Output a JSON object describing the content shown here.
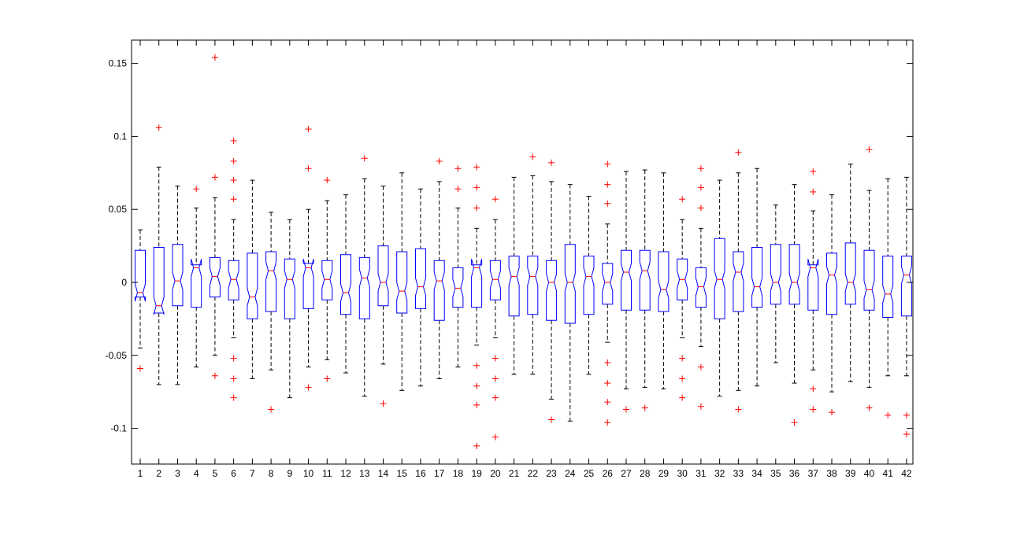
{
  "chart_data": {
    "type": "boxplot",
    "notched": true,
    "ylim": [
      -0.125,
      0.165
    ],
    "yticks": [
      "-0.1",
      "-0.05",
      "0",
      "0.05",
      "0.1",
      "0.15"
    ],
    "ytick_values": [
      -0.1,
      -0.05,
      0,
      0.05,
      0.1,
      0.15
    ],
    "categories": [
      "1",
      "2",
      "3",
      "4",
      "5",
      "6",
      "7",
      "8",
      "9",
      "10",
      "11",
      "12",
      "13",
      "14",
      "15",
      "16",
      "17",
      "18",
      "19",
      "20",
      "21",
      "22",
      "23",
      "24",
      "25",
      "26",
      "27",
      "28",
      "29",
      "30",
      "31",
      "32",
      "33",
      "34",
      "35",
      "36",
      "37",
      "38",
      "39",
      "40",
      "41",
      "42"
    ],
    "colors": {
      "box": "#0000ff",
      "median": "#ff0000",
      "whisker": "#000000",
      "outlier": "#ff0000",
      "axes": "#000000",
      "background": "#ffffff"
    },
    "boxes": [
      {
        "wlo": -0.045,
        "q1": -0.01,
        "med": -0.007,
        "q3": 0.022,
        "whi": 0.036,
        "out": [
          -0.059
        ]
      },
      {
        "wlo": -0.07,
        "q1": -0.021,
        "med": -0.016,
        "q3": 0.024,
        "whi": 0.079,
        "out": [
          0.106
        ]
      },
      {
        "wlo": -0.07,
        "q1": -0.016,
        "med": 0.001,
        "q3": 0.026,
        "whi": 0.066,
        "out": []
      },
      {
        "wlo": -0.058,
        "q1": -0.017,
        "med": 0.01,
        "q3": 0.012,
        "whi": 0.051,
        "out": [
          0.064
        ]
      },
      {
        "wlo": -0.05,
        "q1": -0.01,
        "med": 0.004,
        "q3": 0.017,
        "whi": 0.058,
        "out": [
          0.154,
          0.072,
          -0.064
        ]
      },
      {
        "wlo": -0.038,
        "q1": -0.012,
        "med": 0.002,
        "q3": 0.015,
        "whi": 0.043,
        "out": [
          0.097,
          0.083,
          0.07,
          0.057,
          -0.052,
          -0.066,
          -0.079
        ]
      },
      {
        "wlo": -0.066,
        "q1": -0.025,
        "med": -0.01,
        "q3": 0.02,
        "whi": 0.07,
        "out": []
      },
      {
        "wlo": -0.06,
        "q1": -0.02,
        "med": 0.008,
        "q3": 0.021,
        "whi": 0.048,
        "out": [
          -0.087
        ]
      },
      {
        "wlo": -0.079,
        "q1": -0.025,
        "med": 0.002,
        "q3": 0.016,
        "whi": 0.043,
        "out": []
      },
      {
        "wlo": -0.058,
        "q1": -0.018,
        "med": 0.01,
        "q3": 0.013,
        "whi": 0.05,
        "out": [
          0.105,
          0.078,
          -0.072
        ]
      },
      {
        "wlo": -0.053,
        "q1": -0.012,
        "med": 0.002,
        "q3": 0.015,
        "whi": 0.056,
        "out": [
          0.07,
          -0.066
        ]
      },
      {
        "wlo": -0.062,
        "q1": -0.022,
        "med": -0.007,
        "q3": 0.019,
        "whi": 0.06,
        "out": []
      },
      {
        "wlo": -0.078,
        "q1": -0.025,
        "med": 0.003,
        "q3": 0.017,
        "whi": 0.071,
        "out": [
          0.085
        ]
      },
      {
        "wlo": -0.056,
        "q1": -0.016,
        "med": 0.0,
        "q3": 0.025,
        "whi": 0.066,
        "out": [
          -0.083
        ]
      },
      {
        "wlo": -0.074,
        "q1": -0.021,
        "med": -0.006,
        "q3": 0.021,
        "whi": 0.075,
        "out": []
      },
      {
        "wlo": -0.071,
        "q1": -0.018,
        "med": -0.003,
        "q3": 0.023,
        "whi": 0.064,
        "out": []
      },
      {
        "wlo": -0.066,
        "q1": -0.026,
        "med": 0.001,
        "q3": 0.015,
        "whi": 0.069,
        "out": [
          0.083
        ]
      },
      {
        "wlo": -0.058,
        "q1": -0.017,
        "med": -0.004,
        "q3": 0.01,
        "whi": 0.051,
        "out": [
          0.078,
          0.064
        ]
      },
      {
        "wlo": -0.043,
        "q1": -0.017,
        "med": 0.01,
        "q3": 0.012,
        "whi": 0.037,
        "out": [
          0.079,
          0.065,
          0.051,
          -0.057,
          -0.071,
          -0.084,
          -0.112
        ]
      },
      {
        "wlo": -0.038,
        "q1": -0.012,
        "med": 0.002,
        "q3": 0.015,
        "whi": 0.043,
        "out": [
          0.057,
          -0.052,
          -0.066,
          -0.079,
          -0.106
        ]
      },
      {
        "wlo": -0.063,
        "q1": -0.023,
        "med": 0.004,
        "q3": 0.018,
        "whi": 0.072,
        "out": []
      },
      {
        "wlo": -0.063,
        "q1": -0.022,
        "med": 0.004,
        "q3": 0.018,
        "whi": 0.073,
        "out": [
          0.086
        ]
      },
      {
        "wlo": -0.08,
        "q1": -0.026,
        "med": 0.0,
        "q3": 0.015,
        "whi": 0.069,
        "out": [
          0.082,
          -0.094
        ]
      },
      {
        "wlo": -0.095,
        "q1": -0.028,
        "med": 0.0,
        "q3": 0.026,
        "whi": 0.067,
        "out": []
      },
      {
        "wlo": -0.063,
        "q1": -0.022,
        "med": 0.004,
        "q3": 0.018,
        "whi": 0.059,
        "out": []
      },
      {
        "wlo": -0.041,
        "q1": -0.015,
        "med": 0.0,
        "q3": 0.013,
        "whi": 0.04,
        "out": [
          0.081,
          0.067,
          0.054,
          -0.055,
          -0.069,
          -0.082,
          -0.096
        ]
      },
      {
        "wlo": -0.073,
        "q1": -0.019,
        "med": 0.007,
        "q3": 0.022,
        "whi": 0.076,
        "out": [
          -0.087
        ]
      },
      {
        "wlo": -0.072,
        "q1": -0.019,
        "med": 0.008,
        "q3": 0.022,
        "whi": 0.077,
        "out": [
          -0.086
        ]
      },
      {
        "wlo": -0.073,
        "q1": -0.02,
        "med": -0.005,
        "q3": 0.021,
        "whi": 0.075,
        "out": []
      },
      {
        "wlo": -0.038,
        "q1": -0.012,
        "med": 0.002,
        "q3": 0.016,
        "whi": 0.043,
        "out": [
          0.057,
          -0.052,
          -0.066,
          -0.079
        ]
      },
      {
        "wlo": -0.044,
        "q1": -0.017,
        "med": -0.003,
        "q3": 0.01,
        "whi": 0.037,
        "out": [
          0.078,
          0.065,
          0.051,
          -0.058,
          -0.085
        ]
      },
      {
        "wlo": -0.078,
        "q1": -0.025,
        "med": 0.002,
        "q3": 0.03,
        "whi": 0.07,
        "out": []
      },
      {
        "wlo": -0.074,
        "q1": -0.02,
        "med": 0.007,
        "q3": 0.021,
        "whi": 0.075,
        "out": [
          0.089,
          -0.087
        ]
      },
      {
        "wlo": -0.071,
        "q1": -0.017,
        "med": -0.003,
        "q3": 0.024,
        "whi": 0.078,
        "out": []
      },
      {
        "wlo": -0.055,
        "q1": -0.015,
        "med": 0.0,
        "q3": 0.026,
        "whi": 0.053,
        "out": []
      },
      {
        "wlo": -0.069,
        "q1": -0.015,
        "med": 0.0,
        "q3": 0.026,
        "whi": 0.067,
        "out": [
          -0.096
        ]
      },
      {
        "wlo": -0.06,
        "q1": -0.019,
        "med": 0.01,
        "q3": 0.012,
        "whi": 0.049,
        "out": [
          0.076,
          0.062,
          -0.073,
          -0.087
        ]
      },
      {
        "wlo": -0.075,
        "q1": -0.022,
        "med": 0.005,
        "q3": 0.02,
        "whi": 0.06,
        "out": [
          -0.089
        ]
      },
      {
        "wlo": -0.068,
        "q1": -0.015,
        "med": 0.0,
        "q3": 0.027,
        "whi": 0.081,
        "out": []
      },
      {
        "wlo": -0.072,
        "q1": -0.019,
        "med": -0.005,
        "q3": 0.022,
        "whi": 0.063,
        "out": [
          0.091,
          -0.086
        ]
      },
      {
        "wlo": -0.064,
        "q1": -0.024,
        "med": -0.008,
        "q3": 0.018,
        "whi": 0.071,
        "out": [
          -0.091
        ]
      },
      {
        "wlo": -0.064,
        "q1": -0.023,
        "med": 0.005,
        "q3": 0.018,
        "whi": 0.072,
        "out": [
          -0.091,
          -0.104
        ]
      }
    ]
  }
}
